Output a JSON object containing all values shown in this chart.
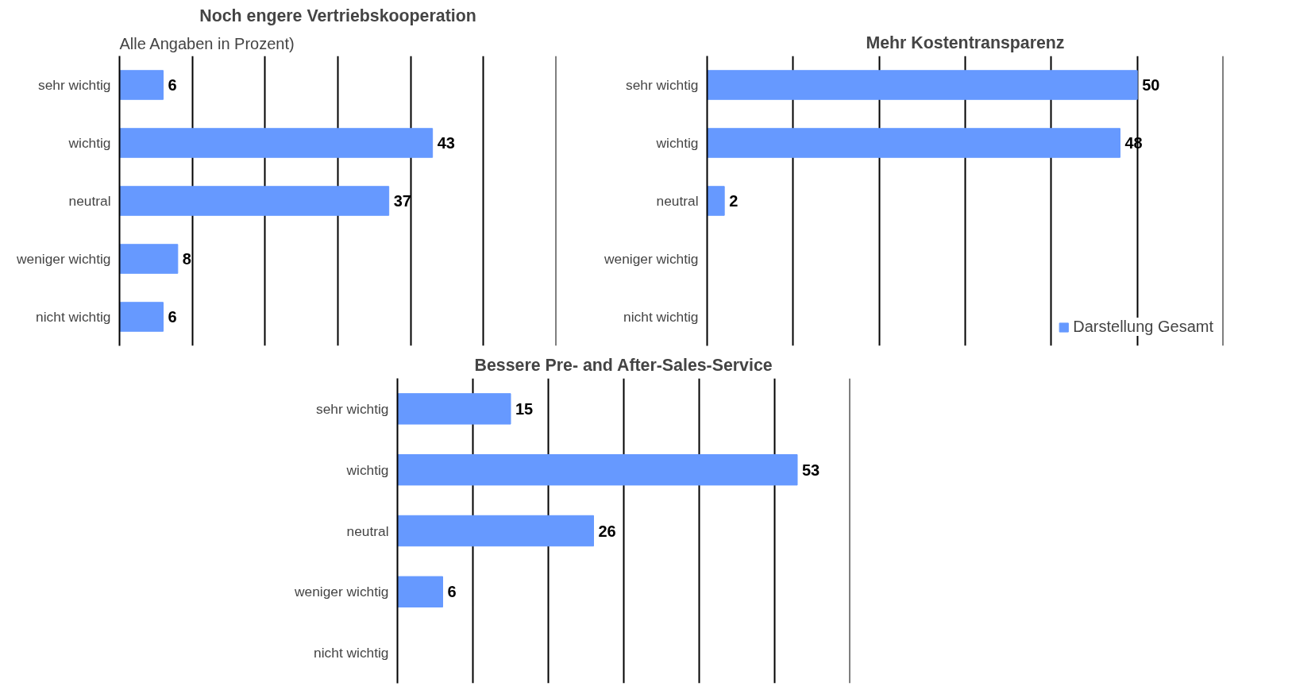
{
  "chart_data": [
    {
      "type": "bar",
      "orientation": "horizontal",
      "title": "Noch engere Vertriebskooperation",
      "annotations": [
        "Alle Angaben in Prozent)"
      ],
      "categories": [
        "sehr wichtig",
        "wichtig",
        "neutral",
        "weniger wichtig",
        "nicht wichtig"
      ],
      "series": [
        {
          "color": "#6699ff",
          "values": [
            6,
            43,
            37,
            8,
            6
          ]
        }
      ],
      "xlim": [
        0,
        60
      ],
      "xticks": [
        {
          "value": 0,
          "label": null
        },
        {
          "value": 10,
          "label": null
        },
        {
          "value": 20,
          "label": null
        },
        {
          "value": 30,
          "label": null
        },
        {
          "value": 40,
          "label": null
        },
        {
          "value": 50,
          "label": null
        },
        {
          "value": 60,
          "label": null
        }
      ],
      "grid": "x",
      "tick_labels": "y",
      "data_labels": true
    },
    {
      "type": "bar",
      "orientation": "horizontal",
      "title": "Mehr Kostentransparenz",
      "legend": "bottom right",
      "categories": [
        "sehr wichtig",
        "wichtig",
        "neutral",
        "weniger wichtig",
        "nicht wichtig"
      ],
      "series": [
        {
          "name": "Darstellung Gesamt",
          "color": "#6699ff",
          "values": [
            50,
            48,
            2,
            null,
            null
          ]
        }
      ],
      "xlim": [
        0,
        60
      ],
      "xticks": [
        {
          "value": 0,
          "label": null
        },
        {
          "value": 10,
          "label": null
        },
        {
          "value": 20,
          "label": null
        },
        {
          "value": 30,
          "label": null
        },
        {
          "value": 40,
          "label": null
        },
        {
          "value": 50,
          "label": null
        },
        {
          "value": 60,
          "label": null
        }
      ],
      "grid": "x",
      "tick_labels": "y",
      "data_labels": true
    },
    {
      "type": "bar",
      "orientation": "horizontal",
      "title": "Bessere Pre- and After-Sales-Service",
      "categories": [
        "sehr wichtig",
        "wichtig",
        "neutral",
        "weniger wichtig",
        "nicht wichtig"
      ],
      "series": [
        {
          "color": "#6699ff",
          "values": [
            15,
            53,
            26,
            6,
            null
          ]
        }
      ],
      "xlim": [
        0,
        60
      ],
      "xticks": [
        {
          "value": 0,
          "label": null
        },
        {
          "value": 10,
          "label": null
        },
        {
          "value": 20,
          "label": null
        },
        {
          "value": 30,
          "label": null
        },
        {
          "value": 40,
          "label": null
        },
        {
          "value": 50,
          "label": null
        },
        {
          "value": 60,
          "label": null
        }
      ],
      "grid": "x",
      "tick_labels": "y",
      "data_labels": true
    }
  ]
}
